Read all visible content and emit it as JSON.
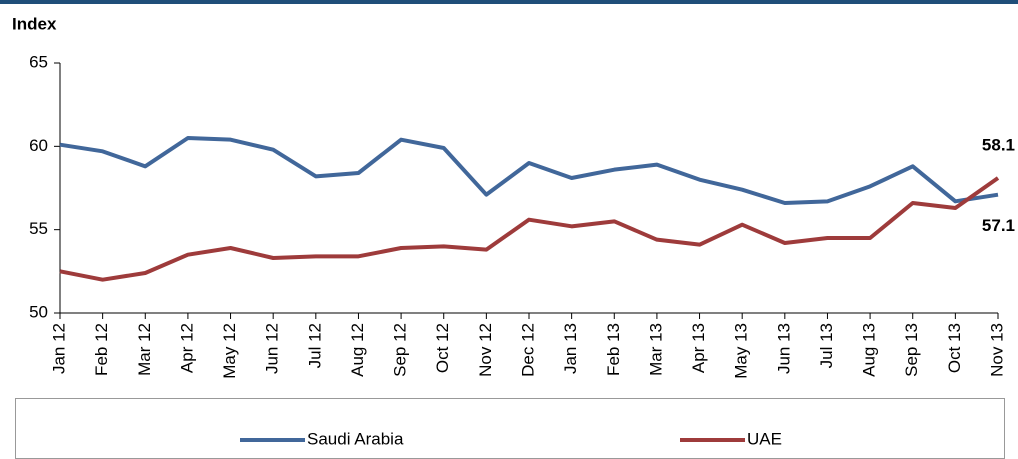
{
  "chart_data": {
    "type": "line",
    "y_label": "Index",
    "categories": [
      "Jan 12",
      "Feb 12",
      "Mar 12",
      "Apr 12",
      "May 12",
      "Jun 12",
      "Jul 12",
      "Aug 12",
      "Sep 12",
      "Oct 12",
      "Nov 12",
      "Dec 12",
      "Jan 13",
      "Feb 13",
      "Mar 13",
      "Apr 13",
      "May 13",
      "Jun 13",
      "Jul 13",
      "Aug 13",
      "Sep 13",
      "Oct 13",
      "Nov 13"
    ],
    "series": [
      {
        "name": "Saudi Arabia",
        "color": "#41679a",
        "values": [
          60.1,
          59.7,
          58.8,
          60.5,
          60.4,
          59.8,
          58.2,
          58.4,
          60.4,
          59.9,
          57.1,
          59.0,
          58.1,
          58.6,
          58.9,
          58.0,
          57.4,
          56.6,
          56.7,
          57.6,
          58.8,
          56.7,
          57.1
        ]
      },
      {
        "name": "UAE",
        "color": "#9e3b3b",
        "values": [
          52.5,
          52.0,
          52.4,
          53.5,
          53.9,
          53.3,
          53.4,
          53.4,
          53.9,
          54.0,
          53.8,
          55.6,
          55.2,
          55.5,
          54.4,
          54.1,
          55.3,
          54.2,
          54.5,
          54.5,
          56.6,
          56.3,
          58.1
        ]
      }
    ],
    "label_last": true,
    "ylim": [
      50,
      65
    ],
    "yticks": [
      50,
      55,
      60,
      65
    ],
    "legend": "bottom"
  }
}
